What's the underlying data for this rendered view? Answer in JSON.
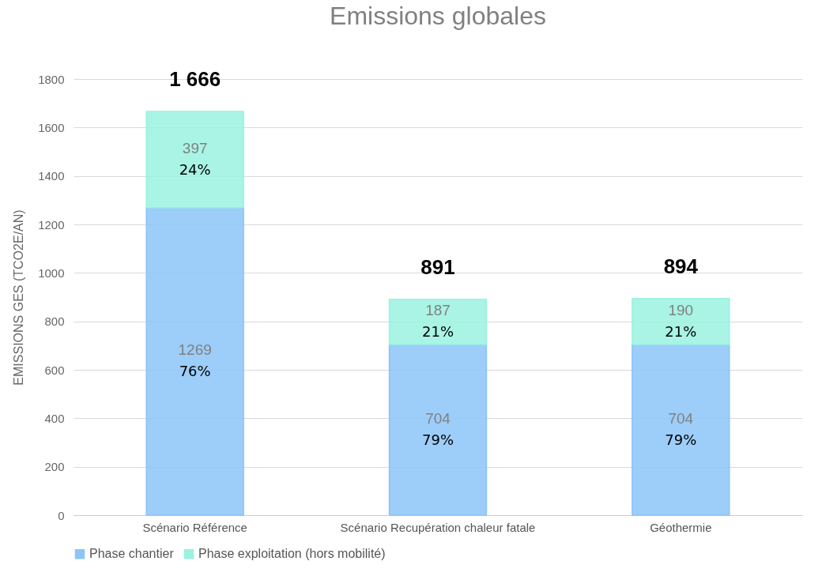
{
  "chart_data": {
    "type": "bar",
    "title": "Emissions globales",
    "ylabel": "EMISSIONS GES (TCO2E/AN)",
    "categories": [
      "Scénario Référence",
      "Scénario Recupération chaleur fatale",
      "Géothermie"
    ],
    "series": [
      {
        "name": "Phase chantier",
        "color": "#8cc4f8",
        "values": [
          1269,
          704,
          704
        ]
      },
      {
        "name": "Phase exploitation (hors mobilité)",
        "color": "#9af2df",
        "values": [
          397,
          187,
          190
        ]
      }
    ],
    "annotations": [
      "76%",
      "79%",
      "79%",
      "24%",
      "21%",
      "21%"
    ],
    "stacked": true,
    "data_labels": true,
    "totals": [
      "1 666",
      "891",
      "894"
    ],
    "ylim": [
      0,
      1800
    ],
    "yticks": [
      0,
      200,
      400,
      600,
      800,
      1000,
      1200,
      1400,
      1600,
      1800
    ],
    "grid": "y",
    "legend": "bottom"
  }
}
